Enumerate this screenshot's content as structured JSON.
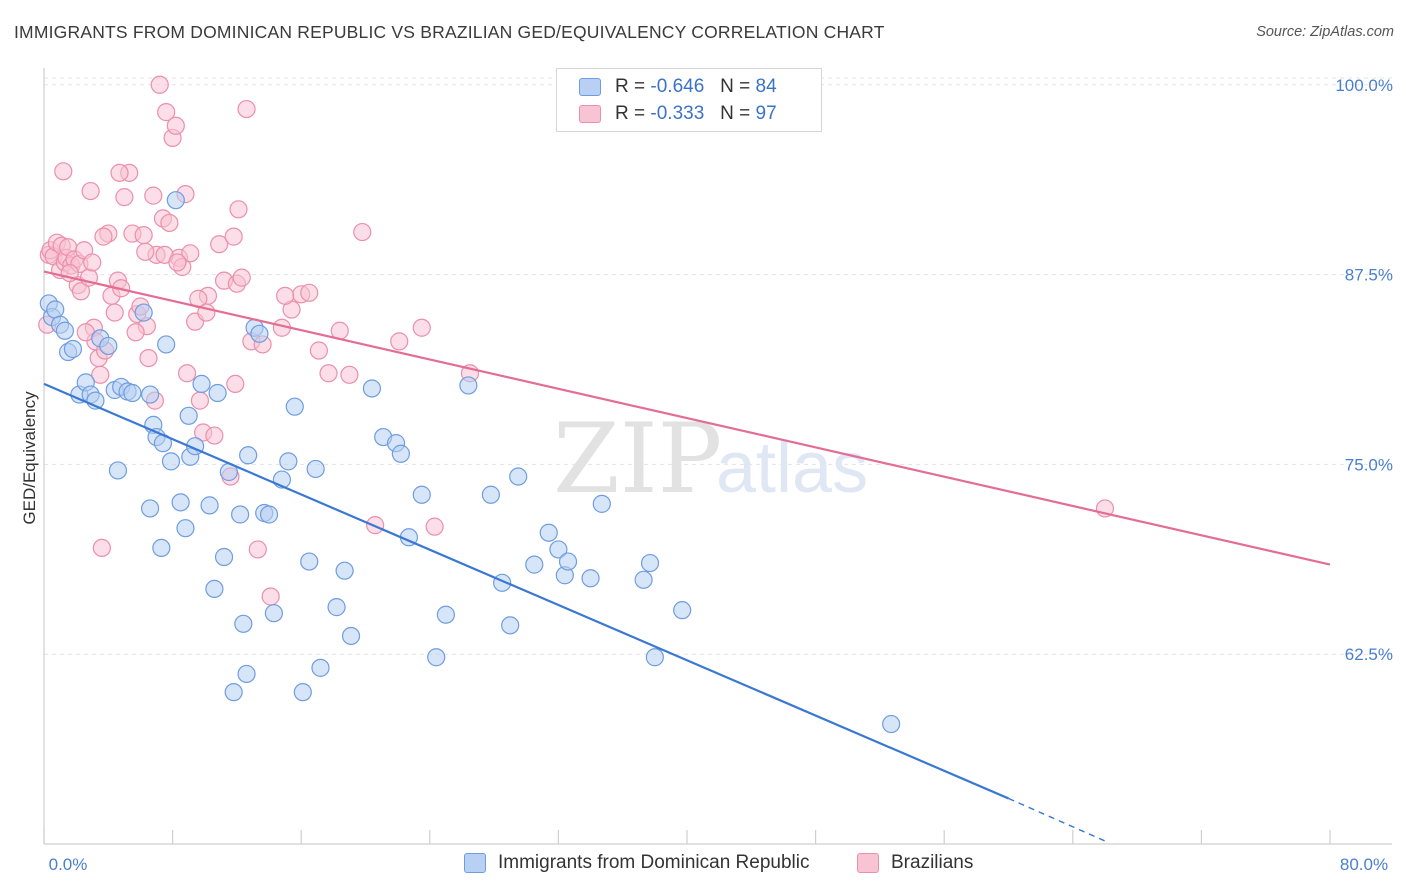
{
  "header": {
    "title": "IMMIGRANTS FROM DOMINICAN REPUBLIC VS BRAZILIAN GED/EQUIVALENCY CORRELATION CHART",
    "source": "Source: ZipAtlas.com"
  },
  "watermark": {
    "zip": "ZIP",
    "atlas": "atlas"
  },
  "legend": {
    "series": [
      {
        "r_label": "R =",
        "r_value": "-0.646",
        "n_label": "N =",
        "n_value": "84"
      },
      {
        "r_label": "R =",
        "r_value": "-0.333",
        "n_label": "N =",
        "n_value": "97"
      }
    ]
  },
  "bottom_legend": {
    "items": [
      "Immigrants from Dominican Republic",
      "Brazilians"
    ]
  },
  "colors": {
    "blue_fill": "#b7d0f3",
    "blue_stroke": "#6f9de0",
    "blue_line": "#3a78d4",
    "pink_fill": "#f8c3d3",
    "pink_stroke": "#ec8fac",
    "pink_line": "#e46d94",
    "axis_text": "#4a7fd0",
    "grid": "#e3e3e3"
  },
  "chart_data": {
    "type": "scatter",
    "title": "IMMIGRANTS FROM DOMINICAN REPUBLIC VS BRAZILIAN GED/EQUIVALENCY CORRELATION CHART",
    "xlabel": "",
    "ylabel": "GED/Equivalency",
    "xlim": [
      0,
      80
    ],
    "ylim": [
      50,
      101.5
    ],
    "x_tick_labels": [
      "0.0%",
      "80.0%"
    ],
    "y_ticks": [
      62.5,
      75.0,
      87.5,
      100.0
    ],
    "y_tick_labels": [
      "62.5%",
      "75.0%",
      "87.5%",
      "100.0%"
    ],
    "series": [
      {
        "name": "Immigrants from Dominican Republic",
        "r": -0.646,
        "n": 84,
        "trend": {
          "x0": 0,
          "y0": 80.3,
          "x1": 60,
          "y1": 53.0,
          "x_dash_end": 66,
          "y_dash_end": 50.2
        },
        "points": [
          [
            0.3,
            85.6
          ],
          [
            0.5,
            84.7
          ],
          [
            0.7,
            85.2
          ],
          [
            1.0,
            84.2
          ],
          [
            1.3,
            83.8
          ],
          [
            1.5,
            82.4
          ],
          [
            1.8,
            82.6
          ],
          [
            2.2,
            79.6
          ],
          [
            2.6,
            80.4
          ],
          [
            2.9,
            79.6
          ],
          [
            3.2,
            79.2
          ],
          [
            3.5,
            83.3
          ],
          [
            4.0,
            82.8
          ],
          [
            4.4,
            79.9
          ],
          [
            4.8,
            80.1
          ],
          [
            5.2,
            79.8
          ],
          [
            5.5,
            79.7
          ],
          [
            6.2,
            85.0
          ],
          [
            6.6,
            79.6
          ],
          [
            6.8,
            77.6
          ],
          [
            7.0,
            76.8
          ],
          [
            7.4,
            76.4
          ],
          [
            7.6,
            82.9
          ],
          [
            7.9,
            75.2
          ],
          [
            8.2,
            92.4
          ],
          [
            8.5,
            72.5
          ],
          [
            8.8,
            70.8
          ],
          [
            9.1,
            75.5
          ],
          [
            9.4,
            76.2
          ],
          [
            9.8,
            80.3
          ],
          [
            10.3,
            72.3
          ],
          [
            10.6,
            66.8
          ],
          [
            10.8,
            79.7
          ],
          [
            11.2,
            68.9
          ],
          [
            11.5,
            74.5
          ],
          [
            11.8,
            60.0
          ],
          [
            12.2,
            71.7
          ],
          [
            12.4,
            64.5
          ],
          [
            12.6,
            61.2
          ],
          [
            13.1,
            84.0
          ],
          [
            13.4,
            83.6
          ],
          [
            13.7,
            71.8
          ],
          [
            14.0,
            71.7
          ],
          [
            14.3,
            65.2
          ],
          [
            14.8,
            74.0
          ],
          [
            15.2,
            75.2
          ],
          [
            15.6,
            78.8
          ],
          [
            16.1,
            60.0
          ],
          [
            16.5,
            68.6
          ],
          [
            16.9,
            74.7
          ],
          [
            17.2,
            61.6
          ],
          [
            18.2,
            65.6
          ],
          [
            18.7,
            68.0
          ],
          [
            19.1,
            63.7
          ],
          [
            20.4,
            80.0
          ],
          [
            21.1,
            76.8
          ],
          [
            21.9,
            76.4
          ],
          [
            22.2,
            75.7
          ],
          [
            22.7,
            70.2
          ],
          [
            23.5,
            73.0
          ],
          [
            24.4,
            62.3
          ],
          [
            25.0,
            65.1
          ],
          [
            26.4,
            80.2
          ],
          [
            27.8,
            73.0
          ],
          [
            28.5,
            67.2
          ],
          [
            29.0,
            64.4
          ],
          [
            29.5,
            74.2
          ],
          [
            30.5,
            68.4
          ],
          [
            31.4,
            70.5
          ],
          [
            32.0,
            69.4
          ],
          [
            32.4,
            67.7
          ],
          [
            32.6,
            68.6
          ],
          [
            34.0,
            67.5
          ],
          [
            34.7,
            72.4
          ],
          [
            37.3,
            67.4
          ],
          [
            37.7,
            68.5
          ],
          [
            38.0,
            62.3
          ],
          [
            39.7,
            65.4
          ],
          [
            52.7,
            57.9
          ],
          [
            12.7,
            75.6
          ],
          [
            9.0,
            78.2
          ],
          [
            4.6,
            74.6
          ],
          [
            6.6,
            72.1
          ],
          [
            7.3,
            69.5
          ]
        ]
      },
      {
        "name": "Brazilians",
        "r": -0.333,
        "n": 97,
        "trend": {
          "x0": 0,
          "y0": 87.7,
          "x1": 80,
          "y1": 68.4
        },
        "points": [
          [
            0.2,
            84.2
          ],
          [
            0.3,
            88.8
          ],
          [
            0.4,
            89.1
          ],
          [
            0.6,
            88.7
          ],
          [
            0.8,
            89.6
          ],
          [
            1.0,
            87.8
          ],
          [
            1.1,
            89.4
          ],
          [
            1.3,
            88.3
          ],
          [
            1.4,
            88.6
          ],
          [
            1.5,
            89.3
          ],
          [
            1.7,
            88.1
          ],
          [
            1.9,
            88.5
          ],
          [
            2.1,
            86.8
          ],
          [
            2.2,
            88.2
          ],
          [
            2.3,
            86.4
          ],
          [
            2.5,
            89.1
          ],
          [
            2.8,
            87.3
          ],
          [
            3.0,
            88.3
          ],
          [
            3.1,
            84.0
          ],
          [
            3.2,
            83.1
          ],
          [
            3.4,
            82.0
          ],
          [
            3.5,
            80.9
          ],
          [
            3.6,
            69.5
          ],
          [
            3.8,
            82.5
          ],
          [
            4.0,
            90.2
          ],
          [
            4.2,
            86.1
          ],
          [
            4.4,
            85.0
          ],
          [
            4.6,
            87.1
          ],
          [
            4.8,
            86.6
          ],
          [
            5.0,
            92.6
          ],
          [
            5.3,
            94.2
          ],
          [
            5.5,
            90.2
          ],
          [
            5.8,
            84.9
          ],
          [
            6.0,
            85.4
          ],
          [
            6.2,
            90.1
          ],
          [
            6.4,
            84.1
          ],
          [
            6.5,
            82.0
          ],
          [
            6.8,
            92.7
          ],
          [
            7.0,
            88.8
          ],
          [
            7.2,
            100.0
          ],
          [
            7.4,
            91.2
          ],
          [
            7.6,
            98.2
          ],
          [
            7.8,
            90.9
          ],
          [
            8.0,
            96.5
          ],
          [
            8.2,
            97.3
          ],
          [
            8.4,
            88.6
          ],
          [
            8.6,
            88.0
          ],
          [
            8.8,
            92.8
          ],
          [
            9.1,
            88.9
          ],
          [
            9.4,
            84.4
          ],
          [
            9.7,
            79.2
          ],
          [
            9.9,
            77.1
          ],
          [
            10.2,
            86.1
          ],
          [
            10.6,
            76.9
          ],
          [
            10.9,
            89.5
          ],
          [
            11.2,
            87.1
          ],
          [
            11.6,
            74.2
          ],
          [
            11.9,
            80.3
          ],
          [
            12.0,
            86.9
          ],
          [
            12.3,
            87.3
          ],
          [
            12.6,
            98.4
          ],
          [
            12.9,
            83.1
          ],
          [
            13.3,
            69.4
          ],
          [
            14.1,
            66.3
          ],
          [
            14.8,
            84.0
          ],
          [
            15.4,
            85.2
          ],
          [
            16.0,
            86.2
          ],
          [
            16.5,
            86.3
          ],
          [
            17.1,
            82.5
          ],
          [
            17.7,
            81.0
          ],
          [
            18.4,
            83.8
          ],
          [
            19.0,
            80.9
          ],
          [
            19.8,
            90.3
          ],
          [
            20.6,
            71.0
          ],
          [
            24.3,
            70.9
          ],
          [
            26.5,
            81.0
          ],
          [
            1.2,
            94.3
          ],
          [
            2.9,
            93.0
          ],
          [
            4.7,
            94.2
          ],
          [
            6.3,
            89.0
          ],
          [
            7.5,
            88.8
          ],
          [
            8.3,
            88.3
          ],
          [
            9.6,
            85.9
          ],
          [
            10.1,
            85.0
          ],
          [
            11.8,
            90.0
          ],
          [
            12.1,
            91.8
          ],
          [
            13.6,
            82.9
          ],
          [
            15.0,
            86.1
          ],
          [
            22.1,
            83.1
          ],
          [
            23.5,
            84.0
          ],
          [
            3.7,
            90.0
          ],
          [
            5.7,
            83.7
          ],
          [
            6.9,
            79.2
          ],
          [
            2.6,
            83.7
          ],
          [
            1.6,
            87.6
          ],
          [
            8.9,
            81.0
          ],
          [
            66.0,
            72.1
          ]
        ]
      }
    ]
  }
}
